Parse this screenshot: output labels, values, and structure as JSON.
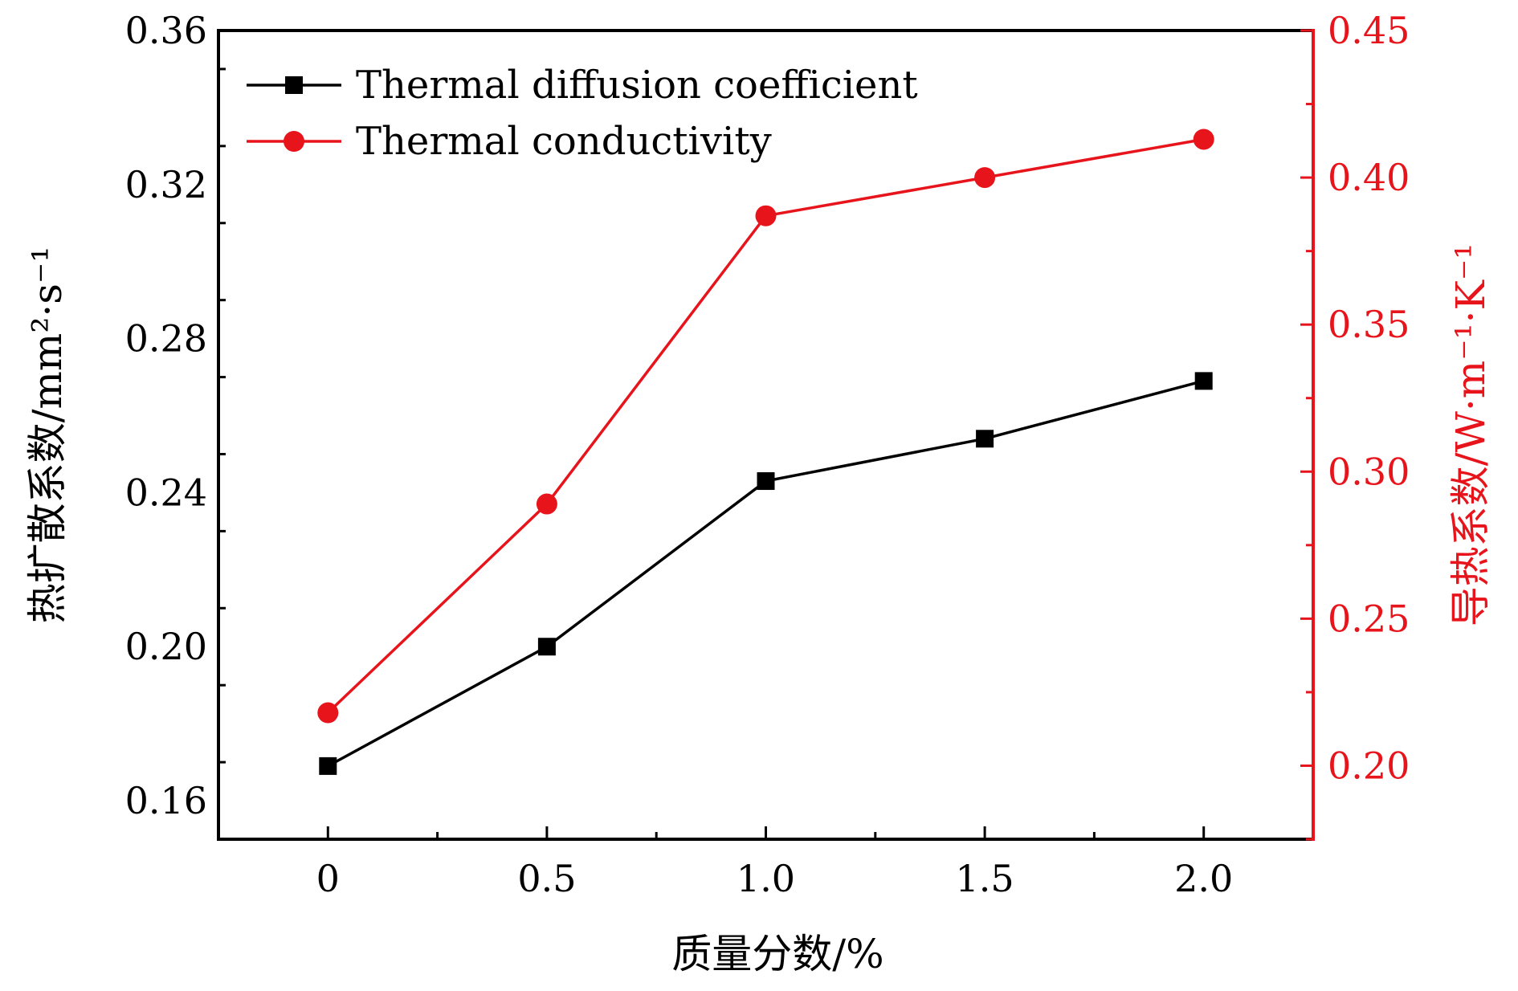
{
  "chart_data": {
    "type": "line",
    "title": "",
    "xlabel": "质量分数/%",
    "ylabel_left": "热扩散系数/mm²·s⁻¹",
    "ylabel_right": "导热系数/W·m⁻¹·K⁻¹",
    "xlim": [
      -0.25,
      2.25
    ],
    "ylim_left": [
      0.15,
      0.36
    ],
    "ylim_right": [
      0.175,
      0.45
    ],
    "x": [
      0,
      0.5,
      1.0,
      1.5,
      2.0
    ],
    "x_tick_labels": [
      "0",
      "0.5",
      "1.0",
      "1.5",
      "2.0"
    ],
    "y_left_ticks": [
      "0.16",
      "0.20",
      "0.24",
      "0.28",
      "0.32",
      "0.36"
    ],
    "y_right_ticks": [
      "0.20",
      "0.25",
      "0.30",
      "0.35",
      "0.40",
      "0.45"
    ],
    "series": [
      {
        "name": "Thermal diffusion coefficient",
        "axis": "left",
        "marker": "square",
        "color": "#000000",
        "values": [
          0.169,
          0.2,
          0.243,
          0.254,
          0.269
        ]
      },
      {
        "name": "Thermal conductivity",
        "axis": "right",
        "marker": "circle",
        "color": "#e8141c",
        "values": [
          0.218,
          0.289,
          0.387,
          0.4,
          0.413
        ]
      }
    ],
    "legend_position": "top-left",
    "grid": false
  }
}
